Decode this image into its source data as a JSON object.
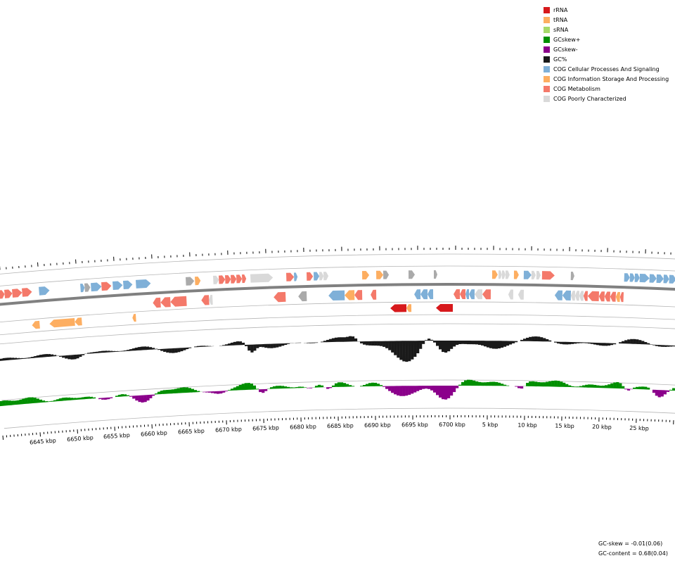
{
  "legend": [
    {
      "label": "rRNA",
      "color": "#d7191c"
    },
    {
      "label": "tRNA",
      "color": "#fdae61"
    },
    {
      "label": "sRNA",
      "color": "#a6d96a"
    },
    {
      "label": "GCskew+",
      "color": "#008f00"
    },
    {
      "label": "GCskew-",
      "color": "#8b008b"
    },
    {
      "label": "GC%",
      "color": "#1a1a1a"
    },
    {
      "label": "COG Cellular Processes And Signaling",
      "color": "#7fb0d8"
    },
    {
      "label": "COG Information Storage And Processing",
      "color": "#fdae61"
    },
    {
      "label": "COG Metabolism",
      "color": "#f4796a"
    },
    {
      "label": "COG Poorly Characterized",
      "color": "#d9d9d9"
    }
  ],
  "axis": {
    "tick_labels": [
      "6645 kbp",
      "6650 kbp",
      "6655 kbp",
      "6660 kbp",
      "6665 kbp",
      "6670 kbp",
      "6675 kbp",
      "6680 kbp",
      "6685 kbp",
      "6690 kbp",
      "6695 kbp",
      "6700 kbp",
      "5 kbp",
      "10 kbp",
      "15 kbp",
      "20 kbp",
      "25 kbp"
    ]
  },
  "stats": {
    "gc_skew": "GC-skew = -0.01(0.06)",
    "gc_content": "GC-content = 0.68(0.04)"
  }
}
